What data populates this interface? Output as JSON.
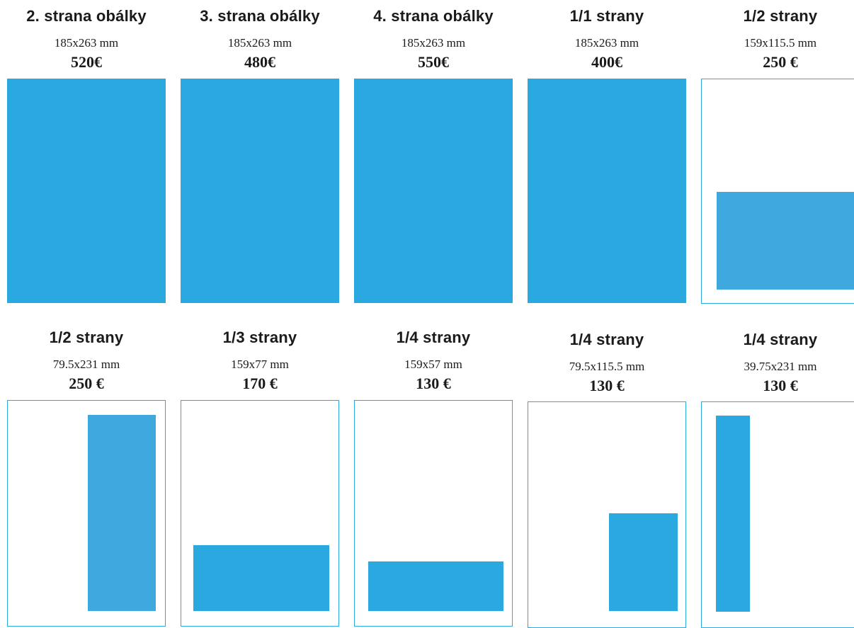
{
  "colors": {
    "ad_fill": "#29a9e0",
    "ad_fill_alt": "#3fa9df",
    "page_border": "#29a9e0"
  },
  "formats": [
    {
      "title": "2. strana obálky",
      "size": "185x263 mm",
      "price": "520€"
    },
    {
      "title": "3. strana obálky",
      "size": "185x263 mm",
      "price": "480€"
    },
    {
      "title": "4. strana obálky",
      "size": "185x263 mm",
      "price": "550€"
    },
    {
      "title": "1/1 strany",
      "size": "185x263 mm",
      "price": "400€"
    },
    {
      "title": "1/2 strany",
      "size": "159x115.5 mm",
      "price": "250 €"
    },
    {
      "title": "1/2 strany",
      "size": "79.5x231 mm",
      "price": "250 €"
    },
    {
      "title": "1/3 strany",
      "size": "159x77 mm",
      "price": "170 €"
    },
    {
      "title": "1/4 strany",
      "size": "159x57 mm",
      "price": "130 €"
    },
    {
      "title": "1/4 strany",
      "size": "79.5x115.5 mm",
      "price": "130 €"
    },
    {
      "title": "1/4 strany",
      "size": "39.75x231 mm",
      "price": "130 €"
    }
  ]
}
